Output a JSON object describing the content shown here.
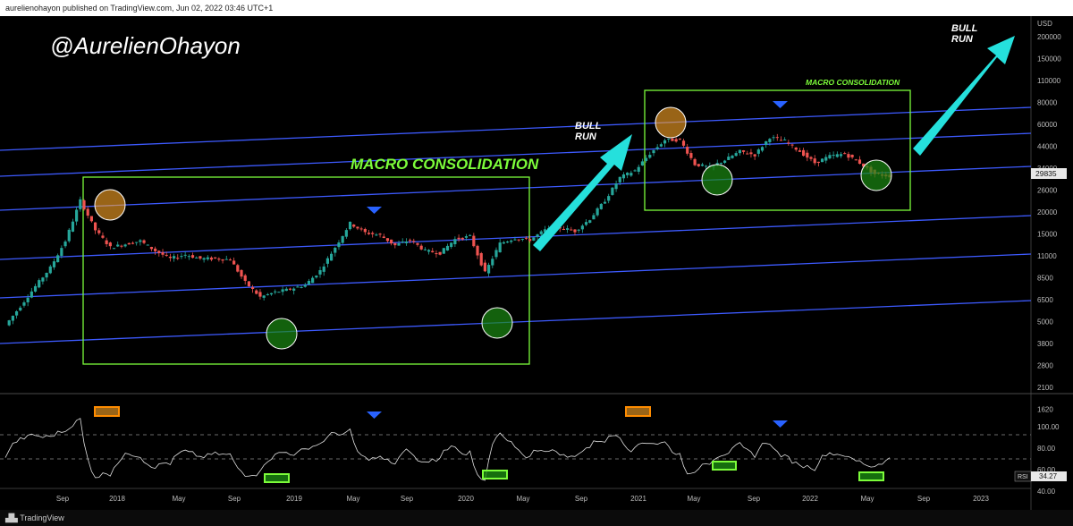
{
  "header": {
    "publisher": "aurelienohayon published on TradingView.com, Jun 02, 2022 03:46 UTC+1"
  },
  "footer": {
    "brand": "TradingView"
  },
  "chart_data": {
    "type": "candlestick",
    "watermark": "@AurelienOhayon",
    "price_axis": {
      "unit": "USD",
      "scale": "log",
      "ticks": [
        "200000",
        "150000",
        "110000",
        "80000",
        "60000",
        "44000",
        "34000",
        "26000",
        "20000",
        "15000",
        "11000",
        "8500",
        "6500",
        "5000",
        "3800",
        "2800",
        "2100",
        "1620"
      ],
      "current_price": "29835"
    },
    "rsi_axis": {
      "ticks": [
        "100.00",
        "80.00",
        "60.00",
        "40.00"
      ],
      "label": "RSI",
      "current_value": "34.27"
    },
    "time_axis": {
      "labels": [
        "Sep",
        "2018",
        "May",
        "Sep",
        "2019",
        "May",
        "Sep",
        "2020",
        "May",
        "Sep",
        "2021",
        "May",
        "Sep",
        "2022",
        "May",
        "Sep",
        "2023"
      ]
    },
    "annotations": {
      "macro_consolidation_1": "MACRO CONSOLIDATION",
      "macro_consolidation_2": "MACRO CONSOLIDATION",
      "bull_run_1": "BULL\nRUN",
      "bull_run_2": "BULL\nRUN"
    },
    "colors": {
      "up": "#26a69a",
      "down": "#ef5350",
      "channel_line": "#3d5afe",
      "box": "#7cfc3a",
      "arrow": "#25e0dc",
      "marker": "#2962ff",
      "rsi_line": "#e0e0e0"
    },
    "price_series_approx": [
      [
        "2017-07",
        1900
      ],
      [
        "2017-08",
        2700
      ],
      [
        "2017-09",
        3900
      ],
      [
        "2017-10",
        5500
      ],
      [
        "2017-11",
        9000
      ],
      [
        "2017-12",
        19000
      ],
      [
        "2018-01",
        11000
      ],
      [
        "2018-02",
        8000
      ],
      [
        "2018-03",
        8500
      ],
      [
        "2018-04",
        9000
      ],
      [
        "2018-05",
        7500
      ],
      [
        "2018-06",
        6500
      ],
      [
        "2018-07",
        7000
      ],
      [
        "2018-08",
        6500
      ],
      [
        "2018-09",
        6500
      ],
      [
        "2018-10",
        6400
      ],
      [
        "2018-11",
        4200
      ],
      [
        "2018-12",
        3200
      ],
      [
        "2019-01",
        3500
      ],
      [
        "2019-02",
        3700
      ],
      [
        "2019-03",
        4000
      ],
      [
        "2019-04",
        5200
      ],
      [
        "2019-05",
        8000
      ],
      [
        "2019-06",
        12500
      ],
      [
        "2019-07",
        10500
      ],
      [
        "2019-08",
        10000
      ],
      [
        "2019-09",
        8300
      ],
      [
        "2019-10",
        9200
      ],
      [
        "2019-11",
        7500
      ],
      [
        "2019-12",
        7200
      ],
      [
        "2020-01",
        9300
      ],
      [
        "2020-02",
        9800
      ],
      [
        "2020-03",
        5000
      ],
      [
        "2020-04",
        8600
      ],
      [
        "2020-05",
        9500
      ],
      [
        "2020-06",
        9200
      ],
      [
        "2020-07",
        11000
      ],
      [
        "2020-08",
        11500
      ],
      [
        "2020-09",
        10800
      ],
      [
        "2020-10",
        13500
      ],
      [
        "2020-11",
        19000
      ],
      [
        "2020-12",
        29000
      ],
      [
        "2021-01",
        33000
      ],
      [
        "2021-02",
        45000
      ],
      [
        "2021-03",
        58000
      ],
      [
        "2021-04",
        58000
      ],
      [
        "2021-05",
        37000
      ],
      [
        "2021-06",
        35000
      ],
      [
        "2021-07",
        40000
      ],
      [
        "2021-08",
        47000
      ],
      [
        "2021-09",
        44000
      ],
      [
        "2021-10",
        61000
      ],
      [
        "2021-11",
        57000
      ],
      [
        "2021-12",
        47000
      ],
      [
        "2022-01",
        38000
      ],
      [
        "2022-02",
        43000
      ],
      [
        "2022-03",
        45000
      ],
      [
        "2022-04",
        38000
      ],
      [
        "2022-05",
        31000
      ],
      [
        "2022-06",
        29835
      ]
    ]
  }
}
